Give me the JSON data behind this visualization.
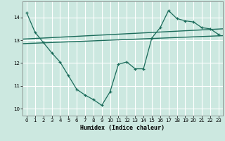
{
  "bg_color": "#cce8e0",
  "grid_color": "#ffffff",
  "line_color": "#1a6b5a",
  "xlabel": "Humidex (Indice chaleur)",
  "xlim": [
    -0.5,
    23.5
  ],
  "ylim": [
    9.7,
    14.7
  ],
  "xticks": [
    0,
    1,
    2,
    3,
    4,
    5,
    6,
    7,
    8,
    9,
    10,
    11,
    12,
    13,
    14,
    15,
    16,
    17,
    18,
    19,
    20,
    21,
    22,
    23
  ],
  "yticks": [
    10,
    11,
    12,
    13,
    14
  ],
  "line1_x": [
    0,
    1,
    2,
    3,
    4,
    5,
    6,
    7,
    8,
    9,
    10,
    11,
    12,
    13,
    14,
    15,
    16,
    17,
    18,
    19,
    20,
    21,
    22,
    23
  ],
  "line1_y": [
    14.2,
    13.35,
    12.9,
    12.45,
    12.05,
    11.45,
    10.85,
    10.6,
    10.4,
    10.15,
    10.75,
    11.95,
    12.05,
    11.75,
    11.75,
    13.1,
    13.55,
    14.3,
    13.95,
    13.85,
    13.8,
    13.55,
    13.5,
    13.25
  ],
  "line2_y_start": 12.85,
  "line2_y_end": 13.2,
  "line3_y_start": 13.05,
  "line3_y_end": 13.5
}
